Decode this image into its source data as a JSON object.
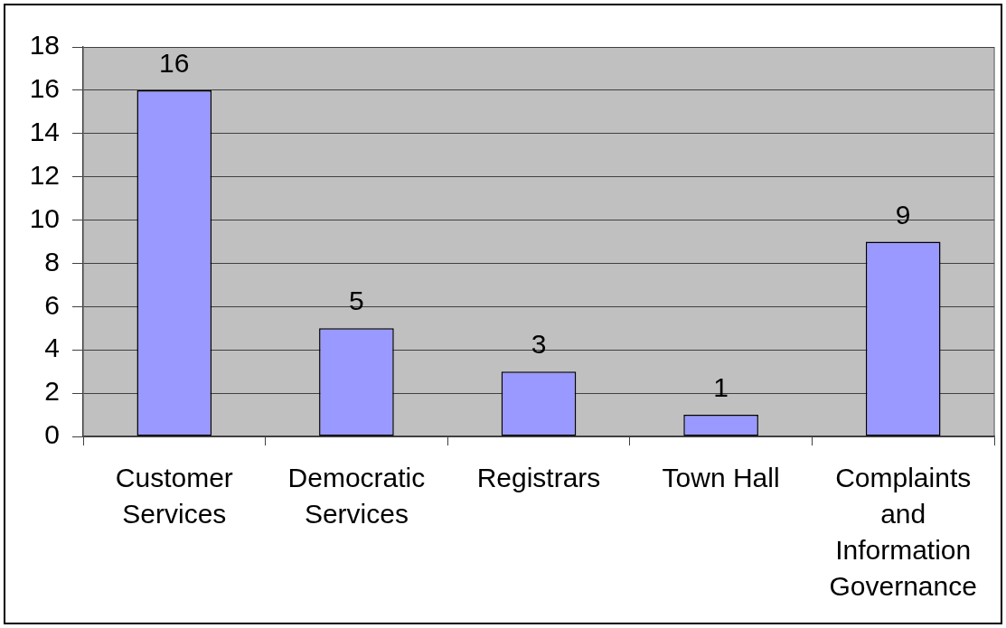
{
  "chart_data": {
    "type": "bar",
    "categories": [
      "Customer Services",
      "Democratic Services",
      "Registrars",
      "Town Hall",
      "Complaints and Information Governance"
    ],
    "values": [
      16,
      5,
      3,
      1,
      9
    ],
    "color": "#9999ff",
    "ylim": [
      0,
      18
    ],
    "yticks": [
      0,
      2,
      4,
      6,
      8,
      10,
      12,
      14,
      16,
      18
    ],
    "grid": "y",
    "data_labels": true
  }
}
